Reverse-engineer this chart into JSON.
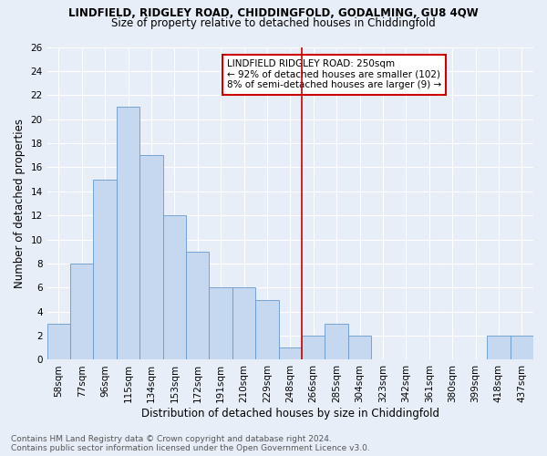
{
  "title": "LINDFIELD, RIDGLEY ROAD, CHIDDINGFOLD, GODALMING, GU8 4QW",
  "subtitle": "Size of property relative to detached houses in Chiddingfold",
  "xlabel": "Distribution of detached houses by size in Chiddingfold",
  "ylabel": "Number of detached properties",
  "categories": [
    "58sqm",
    "77sqm",
    "96sqm",
    "115sqm",
    "134sqm",
    "153sqm",
    "172sqm",
    "191sqm",
    "210sqm",
    "229sqm",
    "248sqm",
    "266sqm",
    "285sqm",
    "304sqm",
    "323sqm",
    "342sqm",
    "361sqm",
    "380sqm",
    "399sqm",
    "418sqm",
    "437sqm"
  ],
  "values": [
    3,
    8,
    15,
    21,
    17,
    12,
    9,
    6,
    6,
    5,
    1,
    2,
    3,
    2,
    0,
    0,
    0,
    0,
    0,
    2,
    2
  ],
  "bar_color": "#c5d8ef",
  "bar_edge_color": "#6699cc",
  "vline_color": "#cc0000",
  "annotation_box_color": "#cc0000",
  "ylim": [
    0,
    26
  ],
  "yticks": [
    0,
    2,
    4,
    6,
    8,
    10,
    12,
    14,
    16,
    18,
    20,
    22,
    24,
    26
  ],
  "footer_line1": "Contains HM Land Registry data © Crown copyright and database right 2024.",
  "footer_line2": "Contains public sector information licensed under the Open Government Licence v3.0.",
  "bg_color": "#e8eef8",
  "grid_color": "#ffffff",
  "title_fontsize": 8.5,
  "subtitle_fontsize": 8.5,
  "label_fontsize": 8.5,
  "tick_fontsize": 7.5,
  "annotation_fontsize": 7.5,
  "footer_fontsize": 6.5
}
